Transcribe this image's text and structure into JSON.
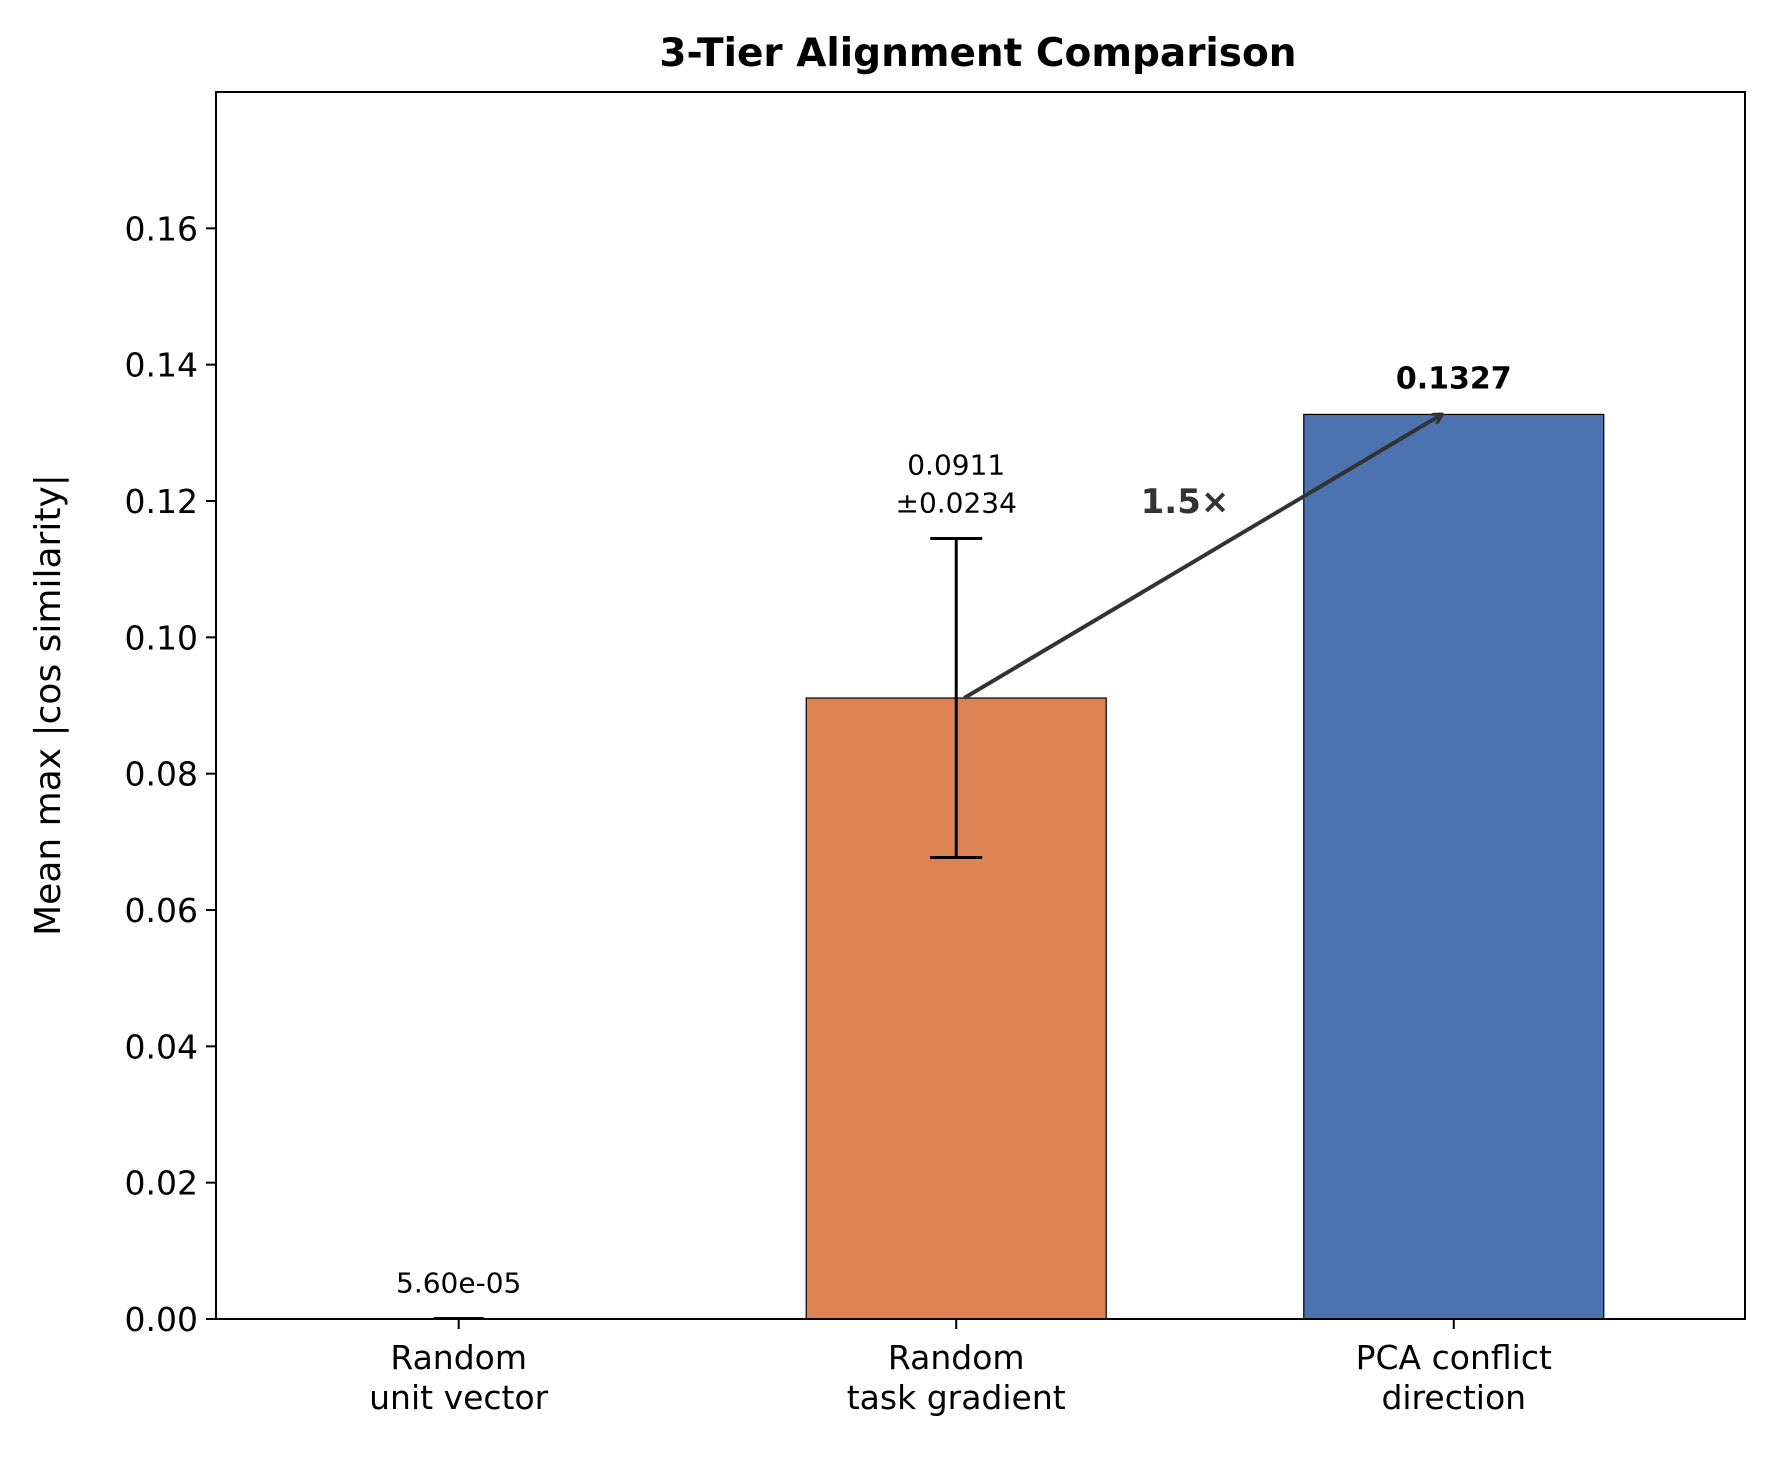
{
  "chart_data": {
    "type": "bar",
    "title": "3-Tier Alignment Comparison",
    "xlabel": "",
    "ylabel": "Mean max |cos similarity|",
    "ylim": [
      0,
      0.18
    ],
    "yticks": [
      0.0,
      0.02,
      0.04,
      0.06,
      0.08,
      0.1,
      0.12,
      0.14,
      0.16
    ],
    "ytick_labels": [
      "0.00",
      "0.02",
      "0.04",
      "0.06",
      "0.08",
      "0.10",
      "0.12",
      "0.14",
      "0.16"
    ],
    "grid": false,
    "categories": [
      [
        "Random",
        "unit vector"
      ],
      [
        "Random",
        "task gradient"
      ],
      [
        "PCA conflict",
        "direction"
      ]
    ],
    "values": [
      5.6e-05,
      0.0911,
      0.1327
    ],
    "errors": [
      null,
      0.0234,
      null
    ],
    "colors": [
      "#1f77b4",
      "#DD8452",
      "#4C72B0"
    ],
    "value_labels": [
      {
        "lines": [
          "5.60e-05"
        ],
        "bold": false
      },
      {
        "lines": [
          "0.0911",
          "±0.0234"
        ],
        "bold": false
      },
      {
        "lines": [
          "0.1327"
        ],
        "bold": true
      }
    ],
    "annotation": {
      "text": "1.5×",
      "from": {
        "category": 1,
        "value": 0.0911
      },
      "to": {
        "category": 2,
        "value": 0.1327
      },
      "label_position": {
        "category": 1.5,
        "value": 0.12
      },
      "color": "#333333"
    }
  }
}
